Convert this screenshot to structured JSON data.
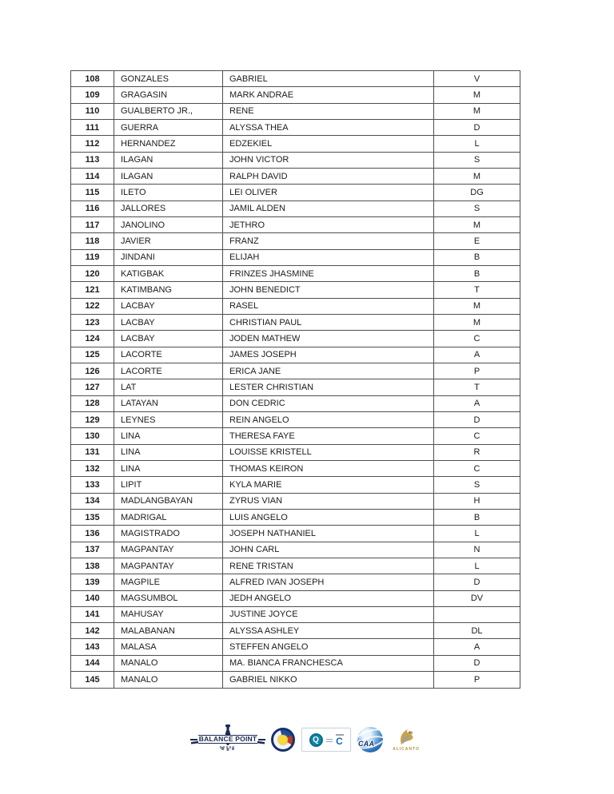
{
  "table": {
    "rows": [
      {
        "no": "108",
        "last": "GONZALES",
        "first": "GABRIEL",
        "mi": "V"
      },
      {
        "no": "109",
        "last": "GRAGASIN",
        "first": "MARK ANDRAE",
        "mi": "M"
      },
      {
        "no": "110",
        "last": "GUALBERTO JR.,",
        "first": "RENE",
        "mi": "M"
      },
      {
        "no": "111",
        "last": "GUERRA",
        "first": "ALYSSA THEA",
        "mi": "D"
      },
      {
        "no": "112",
        "last": "HERNANDEZ",
        "first": "EDZEKIEL",
        "mi": "L"
      },
      {
        "no": "113",
        "last": "ILAGAN",
        "first": "JOHN VICTOR",
        "mi": "S"
      },
      {
        "no": "114",
        "last": "ILAGAN",
        "first": "RALPH DAVID",
        "mi": "M"
      },
      {
        "no": "115",
        "last": "ILETO",
        "first": "LEI OLIVER",
        "mi": "DG"
      },
      {
        "no": "116",
        "last": "JALLORES",
        "first": "JAMIL ALDEN",
        "mi": "S"
      },
      {
        "no": "117",
        "last": "JANOLINO",
        "first": "JETHRO",
        "mi": "M"
      },
      {
        "no": "118",
        "last": "JAVIER",
        "first": "FRANZ",
        "mi": "E"
      },
      {
        "no": "119",
        "last": "JINDANI",
        "first": "ELIJAH",
        "mi": "B"
      },
      {
        "no": "120",
        "last": "KATIGBAK",
        "first": "FRINZES JHASMINE",
        "mi": "B"
      },
      {
        "no": "121",
        "last": "KATIMBANG",
        "first": "JOHN BENEDICT",
        "mi": "T"
      },
      {
        "no": "122",
        "last": "LACBAY",
        "first": "RASEL",
        "mi": "M"
      },
      {
        "no": "123",
        "last": "LACBAY",
        "first": "CHRISTIAN PAUL",
        "mi": "M"
      },
      {
        "no": "124",
        "last": "LACBAY",
        "first": "JODEN MATHEW",
        "mi": "C"
      },
      {
        "no": "125",
        "last": "LACORTE",
        "first": "JAMES JOSEPH",
        "mi": "A",
        "first_small": true
      },
      {
        "no": "126",
        "last": "LACORTE",
        "first": "ERICA JANE",
        "mi": "P"
      },
      {
        "no": "127",
        "last": "LAT",
        "first": "LESTER CHRISTIAN",
        "mi": "T"
      },
      {
        "no": "128",
        "last": "LATAYAN",
        "first": "DON CEDRIC",
        "mi": "A"
      },
      {
        "no": "129",
        "last": "LEYNES",
        "first": "REIN ANGELO",
        "mi": "D"
      },
      {
        "no": "130",
        "last": "LINA",
        "first": "THERESA FAYE",
        "mi": "C"
      },
      {
        "no": "131",
        "last": "LINA",
        "first": "LOUISSE KRISTELL",
        "mi": "R"
      },
      {
        "no": "132",
        "last": "LINA",
        "first": "THOMAS KEIRON",
        "mi": "C"
      },
      {
        "no": "133",
        "last": "LIPIT",
        "first": "KYLA MARIE",
        "mi": "S"
      },
      {
        "no": "134",
        "last": "MADLANGBAYAN",
        "first": "ZYRUS VIAN",
        "mi": "H"
      },
      {
        "no": "135",
        "last": "MADRIGAL",
        "first": "LUIS ANGELO",
        "mi": "B"
      },
      {
        "no": "136",
        "last": "MAGISTRADO",
        "first": "JOSEPH NATHANIEL",
        "mi": "L"
      },
      {
        "no": "137",
        "last": "MAGPANTAY",
        "first": "JOHN CARL",
        "mi": "N"
      },
      {
        "no": "138",
        "last": "MAGPANTAY",
        "first": "RENE TRISTAN",
        "mi": "L"
      },
      {
        "no": "139",
        "last": "MAGPILE",
        "first": "ALFRED IVAN JOSEPH",
        "mi": "D"
      },
      {
        "no": "140",
        "last": "MAGSUMBOL",
        "first": "JEDH ANGELO",
        "mi": "DV"
      },
      {
        "no": "141",
        "last": "MAHUSAY",
        "first": "JUSTINE JOYCE",
        "mi": ""
      },
      {
        "no": "142",
        "last": "MALABANAN",
        "first": "ALYSSA ASHLEY",
        "mi": "DL"
      },
      {
        "no": "143",
        "last": "MALASA",
        "first": "STEFFEN ANGELO",
        "mi": "A"
      },
      {
        "no": "144",
        "last": "MANALO",
        "first": "MA. BIANCA FRANCHESCA",
        "mi": "D"
      },
      {
        "no": "145",
        "last": "MANALO",
        "first": "GABRIEL NIKKO",
        "mi": "P"
      }
    ]
  },
  "footer": {
    "balance_point_label": "BALANCE POINT",
    "cert_q_glyph": "Q",
    "cert_c_glyph": "C",
    "caa_label": "CAA",
    "alicanto_label": "ALICANTO"
  },
  "colors": {
    "table_border": "#4f4f4f",
    "text": "#1c1c1c",
    "logo_navy": "#1c2b52",
    "seal_blue": "#1d4fa1",
    "seal_red": "#c0392b",
    "seal_gold": "#f7d83c",
    "cert_teal": "#0e86a8",
    "cert_blue": "#1668b0",
    "caa_blue": "#123e73",
    "alicanto_gold": "#b3923f"
  }
}
